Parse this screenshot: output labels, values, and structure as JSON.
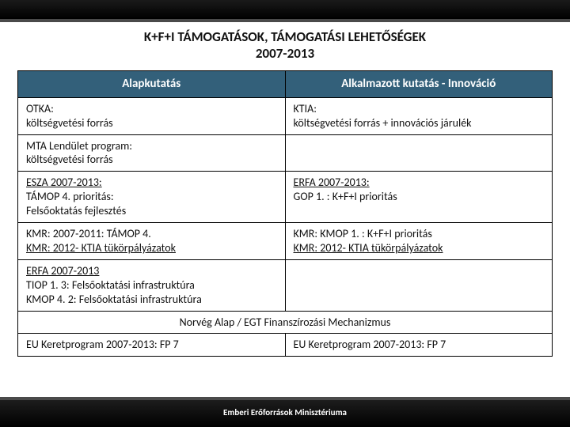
{
  "title": {
    "line1": "K+F+I TÁMOGATÁSOK, TÁMOGATÁSI LEHETŐSÉGEK",
    "line2": "2007-2013"
  },
  "table": {
    "header_bg": "#33607a",
    "header_color": "#ffffff",
    "border_color": "#000000",
    "font_size": 14,
    "header_font_size": 15,
    "columns": [
      "Alapkutatás",
      "Alkalmazott kutatás - Innováció"
    ],
    "rows": [
      {
        "left": {
          "lines": [
            "OTKA:",
            "költségvetési forrás"
          ]
        },
        "right": {
          "lines": [
            "KTIA:",
            "költségvetési forrás + innovációs járulék"
          ]
        }
      },
      {
        "left": {
          "lines": [
            "MTA Lendület program:",
            "költségvetési forrás"
          ]
        },
        "right": {
          "lines": [
            ""
          ]
        }
      },
      {
        "left": {
          "lines": [
            "ESZA 2007-2013:",
            "TÁMOP 4. prioritás:",
            "Felsőoktatás fejlesztés"
          ],
          "underline_first": true
        },
        "right": {
          "lines": [
            "ERFA 2007-2013:",
            "GOP 1. : K+F+I prioritás"
          ],
          "underline_first": true
        }
      },
      {
        "left": {
          "lines": [
            "KMR: 2007-2011: TÁMOP 4.",
            "KMR: 2012- KTIA tükörpályázatok"
          ],
          "underline_second": true
        },
        "right": {
          "lines": [
            "KMR: KMOP 1. : K+F+I prioritás",
            "KMR: 2012- KTIA tükörpályázatok"
          ],
          "underline_second": true
        }
      },
      {
        "left": {
          "lines": [
            "ERFA 2007-2013",
            "TIOP 1. 3: Felsőoktatási infrastruktúra",
            "KMOP 4. 2: Felsőoktatási infrastruktúra"
          ],
          "underline_first": true
        },
        "right": {
          "lines": [
            ""
          ]
        }
      },
      {
        "merged": "Norvég Alap / EGT Finanszírozási Mechanizmus"
      },
      {
        "left": {
          "lines": [
            "EU Keretprogram 2007-2013: FP 7"
          ]
        },
        "right": {
          "lines": [
            "EU Keretprogram 2007-2013: FP 7"
          ]
        }
      }
    ]
  },
  "footer": "Emberi Erőforrások Minisztériuma",
  "colors": {
    "slide_bg": "#ffffff",
    "bar_bg": "#000000",
    "bar_edge": "#4a4a4a",
    "text": "#111111",
    "footer_text": "#ffffff"
  }
}
